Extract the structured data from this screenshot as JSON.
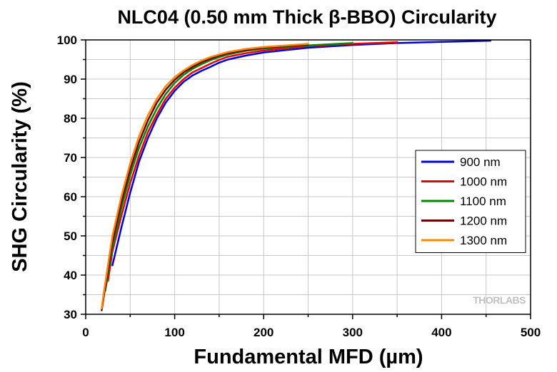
{
  "chart_data": {
    "type": "line",
    "title": "NLC04 (0.50 mm Thick β-BBO) Circularity",
    "xlabel": "Fundamental MFD (µm)",
    "ylabel": "SHG Circularity (%)",
    "xlim": [
      0,
      500
    ],
    "ylim": [
      30,
      100
    ],
    "xticks": [
      0,
      100,
      200,
      300,
      400,
      500
    ],
    "yticks": [
      30,
      40,
      50,
      60,
      70,
      80,
      90,
      100
    ],
    "grid": true,
    "legend_position": "right",
    "watermark": "THORLABS",
    "series": [
      {
        "name": "900 nm",
        "color": "#0000dd",
        "x": [
          30,
          40,
          50,
          60,
          70,
          80,
          90,
          100,
          110,
          120,
          130,
          140,
          150,
          160,
          180,
          200,
          250,
          300,
          350,
          400,
          455
        ],
        "y": [
          42.5,
          52,
          61,
          69,
          75,
          80,
          84,
          87,
          89.3,
          90.9,
          92.1,
          93.1,
          94.2,
          95,
          96,
          96.8,
          98,
          98.7,
          99.2,
          99.5,
          99.8
        ]
      },
      {
        "name": "1000 nm",
        "color": "#ee0000",
        "x": [
          25,
          30,
          40,
          50,
          60,
          70,
          80,
          90,
          100,
          110,
          120,
          130,
          140,
          150,
          160,
          180,
          200,
          250,
          300,
          350
        ],
        "y": [
          38.5,
          46,
          55,
          63.5,
          70.5,
          76.5,
          81,
          85,
          87.8,
          90,
          91.7,
          92.8,
          93.9,
          94.9,
          95.7,
          96.6,
          97.3,
          98.4,
          99,
          99.4
        ]
      },
      {
        "name": "1100 nm",
        "color": "#008800",
        "x": [
          22,
          30,
          40,
          50,
          60,
          70,
          80,
          90,
          100,
          110,
          120,
          130,
          140,
          150,
          160,
          180,
          200,
          250,
          300
        ],
        "y": [
          36,
          47,
          57,
          65.5,
          72.5,
          78,
          82.5,
          86.2,
          89,
          91.1,
          92.6,
          93.8,
          94.8,
          95.6,
          96.3,
          97.2,
          97.8,
          98.6,
          99.2
        ]
      },
      {
        "name": "1200 nm",
        "color": "#700000",
        "x": [
          18,
          20,
          30,
          40,
          50,
          60,
          70,
          80,
          90,
          100,
          110,
          120,
          130,
          140,
          150,
          160,
          180,
          200,
          250
        ],
        "y": [
          31,
          34,
          48.5,
          58.5,
          67,
          74,
          79.5,
          84,
          87.3,
          89.8,
          91.7,
          93.1,
          94.3,
          95.2,
          96,
          96.6,
          97.4,
          98,
          98.8
        ]
      },
      {
        "name": "1300 nm",
        "color": "#ff8800",
        "x": [
          18,
          20,
          30,
          40,
          50,
          60,
          70,
          80,
          90,
          100,
          110,
          120,
          130,
          140,
          150,
          160,
          180,
          200,
          250
        ],
        "y": [
          31.5,
          35,
          50,
          60,
          68.5,
          75.5,
          80.8,
          85,
          88.2,
          90.5,
          92.2,
          93.6,
          94.7,
          95.6,
          96.3,
          96.9,
          97.7,
          98.2,
          99
        ]
      }
    ]
  }
}
